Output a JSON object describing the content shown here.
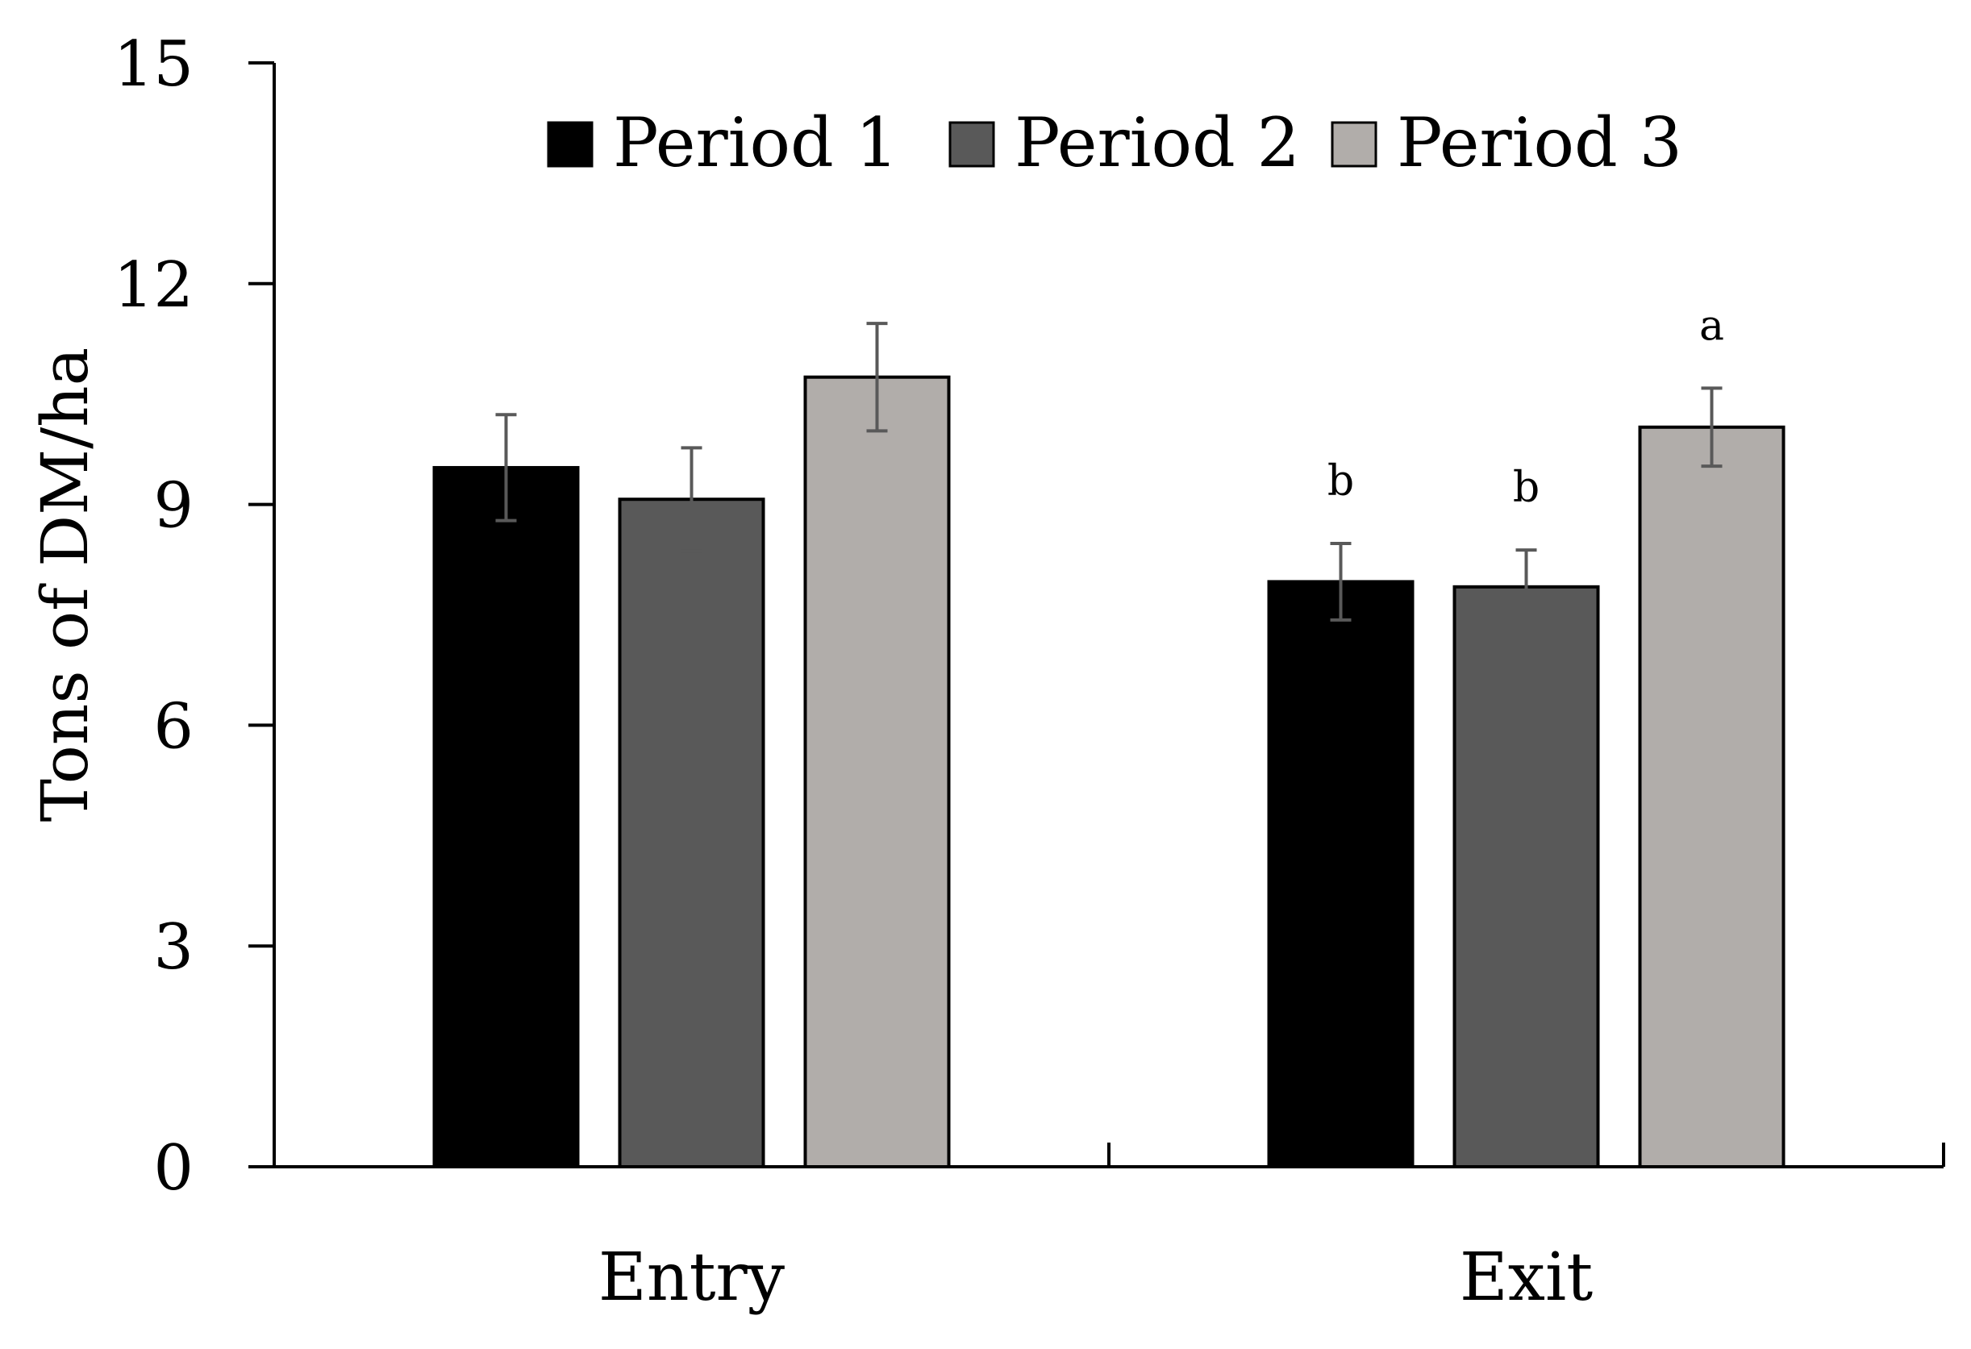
{
  "chart_data": {
    "type": "bar",
    "categories": [
      "Entry",
      "Exit"
    ],
    "series": [
      {
        "name": "Period 1",
        "color": "#000000",
        "values": [
          9.5,
          7.95
        ],
        "errors": [
          0.72,
          0.52
        ],
        "sig": [
          "",
          "b"
        ]
      },
      {
        "name": "Period 2",
        "color": "#595959",
        "values": [
          9.07,
          7.88
        ],
        "errors": [
          0.7,
          0.5
        ],
        "sig": [
          "",
          "b"
        ]
      },
      {
        "name": "Period 3",
        "color": "#b1adaa",
        "values": [
          10.73,
          10.05
        ],
        "errors": [
          0.73,
          0.53
        ],
        "sig": [
          "",
          "a"
        ]
      }
    ],
    "ylabel": "Tons of DM/ha",
    "xlabel": "",
    "title": "",
    "ylim": [
      0,
      15
    ],
    "yticks": [
      0,
      3,
      6,
      9,
      12,
      15
    ],
    "legend_position": "top-center",
    "grid": false
  }
}
